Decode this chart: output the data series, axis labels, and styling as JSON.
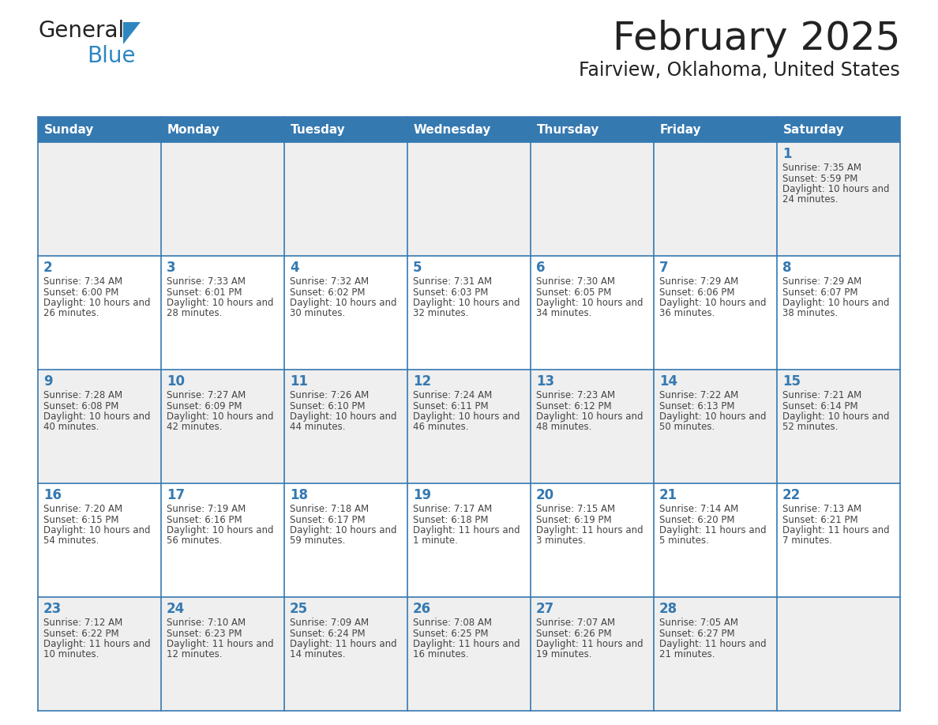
{
  "title": "February 2025",
  "subtitle": "Fairview, Oklahoma, United States",
  "days_of_week": [
    "Sunday",
    "Monday",
    "Tuesday",
    "Wednesday",
    "Thursday",
    "Friday",
    "Saturday"
  ],
  "header_bg": "#3579B1",
  "header_text": "#FFFFFF",
  "cell_bg_alt": "#EFEFEF",
  "cell_bg": "#FFFFFF",
  "border_color": "#3579B1",
  "day_num_color": "#3579B1",
  "text_color": "#444444",
  "title_color": "#222222",
  "logo_general_color": "#222222",
  "logo_blue_color": "#2E86C1",
  "calendar_data": [
    [
      {
        "day": null,
        "sunrise": null,
        "sunset": null,
        "daylight": null
      },
      {
        "day": null,
        "sunrise": null,
        "sunset": null,
        "daylight": null
      },
      {
        "day": null,
        "sunrise": null,
        "sunset": null,
        "daylight": null
      },
      {
        "day": null,
        "sunrise": null,
        "sunset": null,
        "daylight": null
      },
      {
        "day": null,
        "sunrise": null,
        "sunset": null,
        "daylight": null
      },
      {
        "day": null,
        "sunrise": null,
        "sunset": null,
        "daylight": null
      },
      {
        "day": 1,
        "sunrise": "7:35 AM",
        "sunset": "5:59 PM",
        "daylight": "10 hours and 24 minutes."
      }
    ],
    [
      {
        "day": 2,
        "sunrise": "7:34 AM",
        "sunset": "6:00 PM",
        "daylight": "10 hours and 26 minutes."
      },
      {
        "day": 3,
        "sunrise": "7:33 AM",
        "sunset": "6:01 PM",
        "daylight": "10 hours and 28 minutes."
      },
      {
        "day": 4,
        "sunrise": "7:32 AM",
        "sunset": "6:02 PM",
        "daylight": "10 hours and 30 minutes."
      },
      {
        "day": 5,
        "sunrise": "7:31 AM",
        "sunset": "6:03 PM",
        "daylight": "10 hours and 32 minutes."
      },
      {
        "day": 6,
        "sunrise": "7:30 AM",
        "sunset": "6:05 PM",
        "daylight": "10 hours and 34 minutes."
      },
      {
        "day": 7,
        "sunrise": "7:29 AM",
        "sunset": "6:06 PM",
        "daylight": "10 hours and 36 minutes."
      },
      {
        "day": 8,
        "sunrise": "7:29 AM",
        "sunset": "6:07 PM",
        "daylight": "10 hours and 38 minutes."
      }
    ],
    [
      {
        "day": 9,
        "sunrise": "7:28 AM",
        "sunset": "6:08 PM",
        "daylight": "10 hours and 40 minutes."
      },
      {
        "day": 10,
        "sunrise": "7:27 AM",
        "sunset": "6:09 PM",
        "daylight": "10 hours and 42 minutes."
      },
      {
        "day": 11,
        "sunrise": "7:26 AM",
        "sunset": "6:10 PM",
        "daylight": "10 hours and 44 minutes."
      },
      {
        "day": 12,
        "sunrise": "7:24 AM",
        "sunset": "6:11 PM",
        "daylight": "10 hours and 46 minutes."
      },
      {
        "day": 13,
        "sunrise": "7:23 AM",
        "sunset": "6:12 PM",
        "daylight": "10 hours and 48 minutes."
      },
      {
        "day": 14,
        "sunrise": "7:22 AM",
        "sunset": "6:13 PM",
        "daylight": "10 hours and 50 minutes."
      },
      {
        "day": 15,
        "sunrise": "7:21 AM",
        "sunset": "6:14 PM",
        "daylight": "10 hours and 52 minutes."
      }
    ],
    [
      {
        "day": 16,
        "sunrise": "7:20 AM",
        "sunset": "6:15 PM",
        "daylight": "10 hours and 54 minutes."
      },
      {
        "day": 17,
        "sunrise": "7:19 AM",
        "sunset": "6:16 PM",
        "daylight": "10 hours and 56 minutes."
      },
      {
        "day": 18,
        "sunrise": "7:18 AM",
        "sunset": "6:17 PM",
        "daylight": "10 hours and 59 minutes."
      },
      {
        "day": 19,
        "sunrise": "7:17 AM",
        "sunset": "6:18 PM",
        "daylight": "11 hours and 1 minute."
      },
      {
        "day": 20,
        "sunrise": "7:15 AM",
        "sunset": "6:19 PM",
        "daylight": "11 hours and 3 minutes."
      },
      {
        "day": 21,
        "sunrise": "7:14 AM",
        "sunset": "6:20 PM",
        "daylight": "11 hours and 5 minutes."
      },
      {
        "day": 22,
        "sunrise": "7:13 AM",
        "sunset": "6:21 PM",
        "daylight": "11 hours and 7 minutes."
      }
    ],
    [
      {
        "day": 23,
        "sunrise": "7:12 AM",
        "sunset": "6:22 PM",
        "daylight": "11 hours and 10 minutes."
      },
      {
        "day": 24,
        "sunrise": "7:10 AM",
        "sunset": "6:23 PM",
        "daylight": "11 hours and 12 minutes."
      },
      {
        "day": 25,
        "sunrise": "7:09 AM",
        "sunset": "6:24 PM",
        "daylight": "11 hours and 14 minutes."
      },
      {
        "day": 26,
        "sunrise": "7:08 AM",
        "sunset": "6:25 PM",
        "daylight": "11 hours and 16 minutes."
      },
      {
        "day": 27,
        "sunrise": "7:07 AM",
        "sunset": "6:26 PM",
        "daylight": "11 hours and 19 minutes."
      },
      {
        "day": 28,
        "sunrise": "7:05 AM",
        "sunset": "6:27 PM",
        "daylight": "11 hours and 21 minutes."
      },
      {
        "day": null,
        "sunrise": null,
        "sunset": null,
        "daylight": null
      }
    ]
  ]
}
